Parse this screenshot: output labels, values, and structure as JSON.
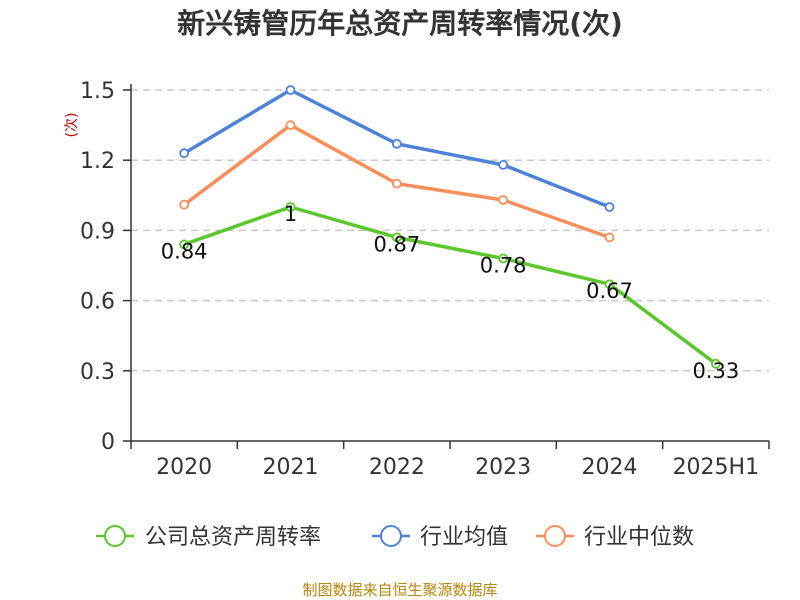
{
  "chart_data": {
    "type": "line",
    "title": "新兴铸管历年总资产周转率情况(次)",
    "ylabel": "(次)",
    "xlabel": "",
    "categories": [
      "2020",
      "2021",
      "2022",
      "2023",
      "2024",
      "2025H1"
    ],
    "ylim": [
      0,
      1.5
    ],
    "yticks": [
      "0",
      "0.3",
      "0.6",
      "0.9",
      "1.2",
      "1.5"
    ],
    "grid": true,
    "legend_position": "bottom",
    "series": [
      {
        "name": "公司总资产周转率",
        "color": "#5cc72c",
        "values": [
          0.84,
          1.0,
          0.87,
          0.78,
          0.67,
          0.33
        ],
        "labels": [
          "0.84",
          "1",
          "0.87",
          "0.78",
          "0.67",
          "0.33"
        ]
      },
      {
        "name": "行业均值",
        "color": "#4e82d9",
        "values": [
          1.23,
          1.5,
          1.27,
          1.18,
          1.0,
          null
        ]
      },
      {
        "name": "行业中位数",
        "color": "#f98e5a",
        "values": [
          1.01,
          1.35,
          1.1,
          1.03,
          0.87,
          null
        ]
      }
    ]
  },
  "source": "制图数据来自恒生聚源数据库"
}
